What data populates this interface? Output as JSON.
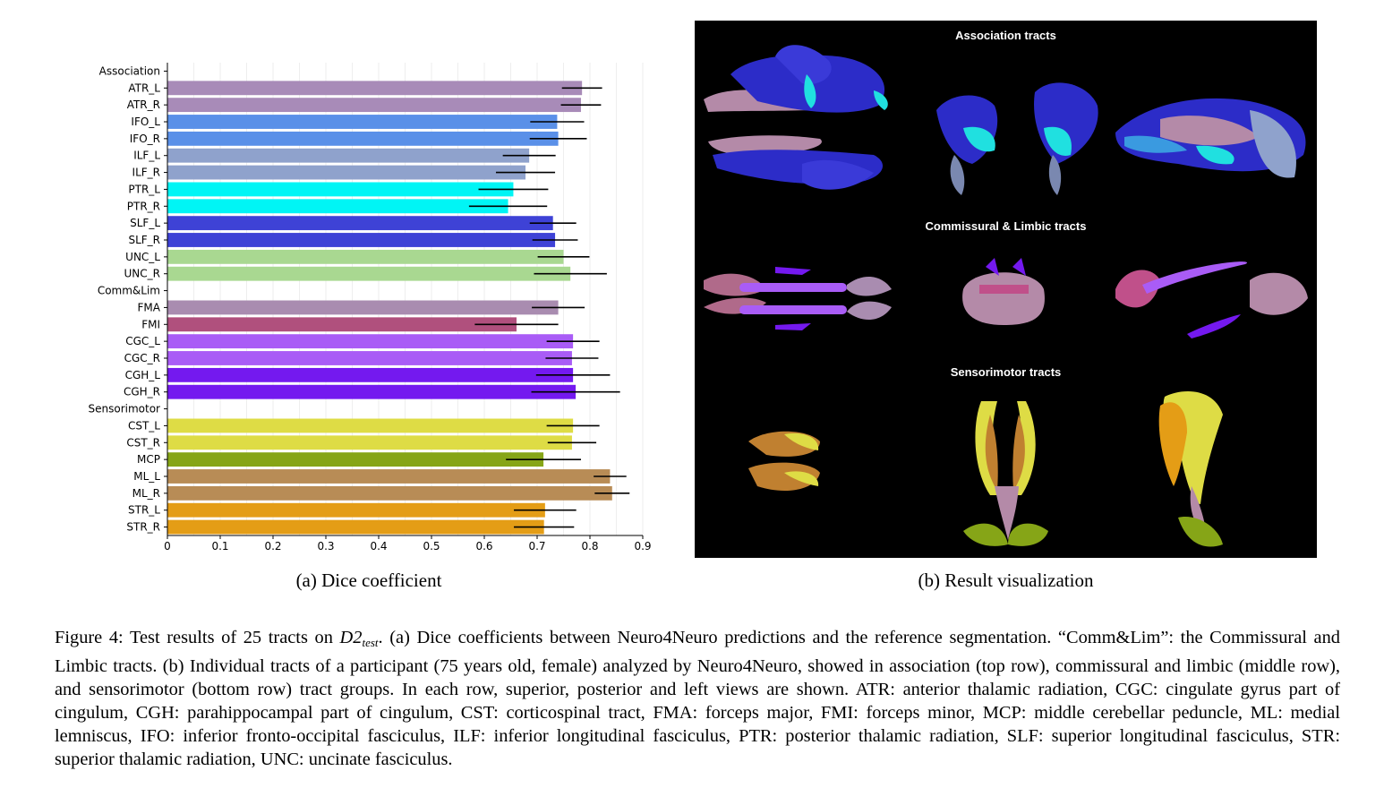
{
  "chart_data": {
    "type": "bar",
    "orientation": "horizontal",
    "categories": [
      "Association",
      "ATR_L",
      "ATR_R",
      "IFO_L",
      "IFO_R",
      "ILF_L",
      "ILF_R",
      "PTR_L",
      "PTR_R",
      "SLF_L",
      "SLF_R",
      "UNC_L",
      "UNC_R",
      "Comm&Lim",
      "FMA",
      "FMI",
      "CGC_L",
      "CGC_R",
      "CGH_L",
      "CGH_R",
      "Sensorimotor",
      "CST_L",
      "CST_R",
      "MCP",
      "ML_L",
      "ML_R",
      "STR_L",
      "STR_R"
    ],
    "values": [
      null,
      0.785,
      0.783,
      0.738,
      0.74,
      0.685,
      0.678,
      0.655,
      0.645,
      0.73,
      0.734,
      0.75,
      0.763,
      null,
      0.74,
      0.661,
      0.768,
      0.766,
      0.768,
      0.773,
      null,
      0.768,
      0.766,
      0.712,
      0.838,
      0.842,
      0.715,
      0.713
    ],
    "errors": [
      null,
      0.038,
      0.038,
      0.051,
      0.054,
      0.05,
      0.056,
      0.066,
      0.074,
      0.044,
      0.043,
      0.049,
      0.069,
      null,
      0.05,
      0.079,
      0.05,
      0.05,
      0.07,
      0.084,
      null,
      0.05,
      0.046,
      0.071,
      0.031,
      0.033,
      0.059,
      0.057
    ],
    "colors": [
      null,
      "#a88bb8",
      "#a88bb8",
      "#5a90e8",
      "#5a90e8",
      "#8fa2cc",
      "#8fa2cc",
      "#00f5f5",
      "#00f5f5",
      "#3e42d6",
      "#3e42d6",
      "#a9d891",
      "#a9d891",
      null,
      "#a98cb0",
      "#b0507d",
      "#a95cf6",
      "#a95cf6",
      "#7419ef",
      "#7419ef",
      null,
      "#dedc45",
      "#dedc45",
      "#86a517",
      "#b88c56",
      "#b88c56",
      "#e49d16",
      "#e49d16"
    ],
    "xticks": [
      "0",
      "0.1",
      "0.2",
      "0.3",
      "0.4",
      "0.5",
      "0.6",
      "0.7",
      "0.8",
      "0.9"
    ],
    "xlim": [
      0,
      0.9
    ],
    "grid": true,
    "xlabel": "",
    "ylabel": "",
    "title": ""
  },
  "captions": {
    "a_label": "(a)",
    "a_text": "Dice coefficient",
    "b_label": "(b)",
    "b_text": "Result visualization"
  },
  "visualization": {
    "row1_title": "Association tracts",
    "row2_title": "Commissural & Limbic tracts",
    "row3_title": "Sensorimotor tracts"
  },
  "figure_caption": {
    "lead": "Figure 4:  Test results of 25 tracts on ",
    "math_base": "D2",
    "math_sub": "test",
    "rest": ".  (a) Dice coefficients between Neuro4Neuro predictions and the reference segmentation.  “Comm&Lim”: the Commissural and Limbic tracts.  (b) Individual tracts of a participant (75 years old, female) analyzed by Neuro4Neuro, showed in association (top row), commissural and limbic (middle row), and sensorimotor (bottom row) tract groups.  In each row, superior, posterior and left views are shown.  ATR: anterior thalamic radiation, CGC: cingulate gyrus part of cingulum, CGH: parahippocampal part of cingulum, CST: corticospinal tract, FMA: forceps major, FMI: forceps minor, MCP: middle cerebellar peduncle, ML: medial lemniscus, IFO: inferior fronto-occipital fasciculus, ILF: inferior longitudinal fasciculus, PTR: posterior thalamic radiation, SLF: superior longitudinal fasciculus, STR: superior thalamic radiation, UNC: uncinate fasciculus."
  }
}
